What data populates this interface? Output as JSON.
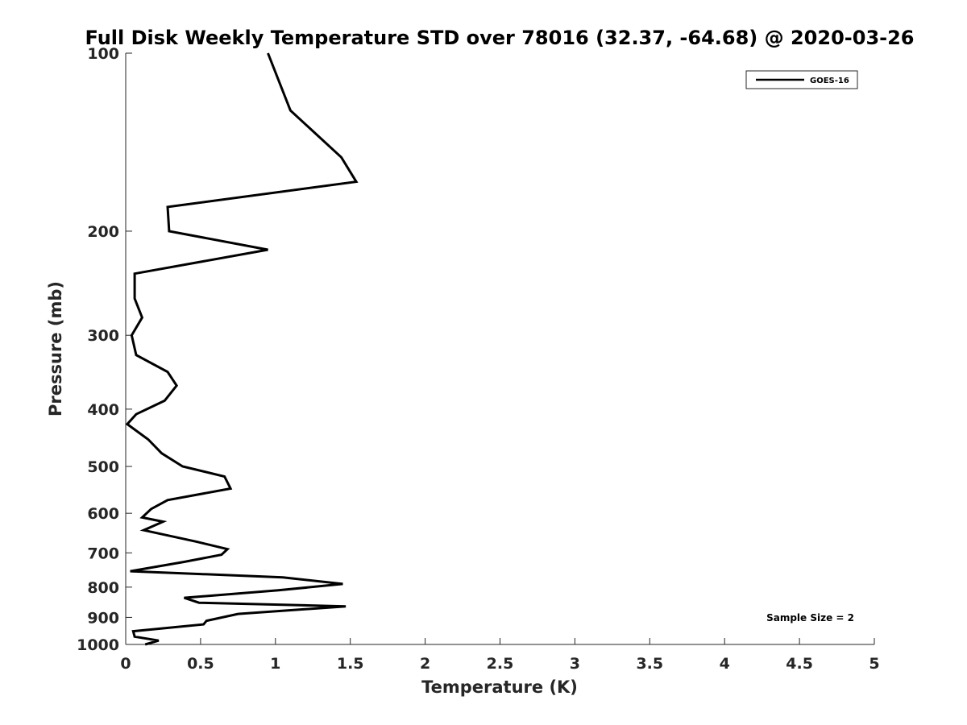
{
  "chart_data": {
    "type": "line",
    "title": "Full Disk Weekly Temperature STD over 78016 (32.37, -64.68) @ 2020-03-26",
    "xlabel": "Temperature (K)",
    "ylabel": "Pressure (mb)",
    "xlim": [
      0,
      5
    ],
    "ylim": [
      100,
      1000
    ],
    "yscale": "log",
    "y_reversed": true,
    "x_ticks": [
      0,
      0.5,
      1,
      1.5,
      2,
      2.5,
      3,
      3.5,
      4,
      4.5,
      5
    ],
    "x_tick_labels": [
      "0",
      "0.5",
      "1",
      "1.5",
      "2",
      "2.5",
      "3",
      "3.5",
      "4",
      "4.5",
      "5"
    ],
    "y_ticks": [
      100,
      200,
      300,
      400,
      500,
      600,
      700,
      800,
      900,
      1000
    ],
    "y_tick_labels": [
      "100",
      "200",
      "300",
      "400",
      "500",
      "600",
      "700",
      "800",
      "900",
      "1000"
    ],
    "grid": false,
    "legend_position": "top-right",
    "series": [
      {
        "name": "GOES-16",
        "color": "#000000",
        "points": [
          [
            0.95,
            100
          ],
          [
            1.1,
            125
          ],
          [
            1.44,
            150
          ],
          [
            1.54,
            165
          ],
          [
            0.28,
            182
          ],
          [
            0.29,
            200
          ],
          [
            0.95,
            215
          ],
          [
            0.06,
            236
          ],
          [
            0.06,
            260
          ],
          [
            0.11,
            280
          ],
          [
            0.04,
            300
          ],
          [
            0.07,
            324
          ],
          [
            0.28,
            346
          ],
          [
            0.34,
            365
          ],
          [
            0.26,
            387
          ],
          [
            0.07,
            408
          ],
          [
            0.01,
            424
          ],
          [
            0.15,
            450
          ],
          [
            0.24,
            475
          ],
          [
            0.38,
            500
          ],
          [
            0.66,
            520
          ],
          [
            0.7,
            545
          ],
          [
            0.28,
            570
          ],
          [
            0.17,
            590
          ],
          [
            0.11,
            610
          ],
          [
            0.25,
            620
          ],
          [
            0.12,
            641
          ],
          [
            0.47,
            670
          ],
          [
            0.68,
            690
          ],
          [
            0.64,
            705
          ],
          [
            0.39,
            725
          ],
          [
            0.03,
            752
          ],
          [
            1.05,
            770
          ],
          [
            1.45,
            790
          ],
          [
            1.02,
            810
          ],
          [
            0.39,
            834
          ],
          [
            0.49,
            850
          ],
          [
            1.47,
            862
          ],
          [
            0.75,
            888
          ],
          [
            0.54,
            912
          ],
          [
            0.52,
            925
          ],
          [
            0.05,
            950
          ],
          [
            0.06,
            970
          ],
          [
            0.22,
            985
          ],
          [
            0.13,
            1000
          ]
        ]
      }
    ],
    "annotations": [
      {
        "text": "Sample Size = 2",
        "position": "bottom-right"
      }
    ]
  }
}
